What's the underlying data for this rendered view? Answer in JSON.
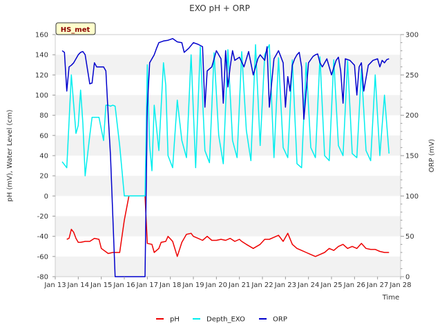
{
  "chart_data": {
    "type": "line",
    "title": "EXO pH + ORP",
    "badge": "HS_met",
    "xlabel": "Time",
    "ylabel": "pH (mV), Water Level (cm)",
    "y2label": "ORP (mV)",
    "x_ticks": [
      "Jan 13",
      "Jan 14",
      "Jan 15",
      "Jan 16",
      "Jan 17",
      "Jan 18",
      "Jan 19",
      "Jan 20",
      "Jan 21",
      "Jan 22",
      "Jan 23",
      "Jan 24",
      "Jan 25",
      "Jan 26",
      "Jan 27",
      "Jan 28"
    ],
    "x_range": [
      13,
      28
    ],
    "ylim": [
      -80,
      160
    ],
    "y_ticks": [
      -80,
      -60,
      -40,
      -20,
      0,
      20,
      40,
      60,
      80,
      100,
      120,
      140,
      160
    ],
    "y2lim": [
      0,
      300
    ],
    "y2_ticks": [
      0,
      50,
      100,
      150,
      200,
      250,
      300
    ],
    "grid": "horizontal bands",
    "legend_position": "bottom",
    "colors": {
      "pH": "#ee0000",
      "Depth_EXO": "#00eeee",
      "ORP": "#0000cc",
      "band": "#f2f2f2",
      "badge_bg": "#ffffcc",
      "badge_border": "#333333"
    },
    "series": [
      {
        "name": "pH",
        "axis": "left",
        "color": "#ee0000",
        "x": [
          13.5,
          13.6,
          13.7,
          13.8,
          13.9,
          14.0,
          14.1,
          14.3,
          14.5,
          14.7,
          14.9,
          15.0,
          15.3,
          15.5,
          15.8,
          16.0,
          16.2,
          16.5,
          16.7,
          16.9,
          17.0,
          17.2,
          17.3,
          17.5,
          17.6,
          17.8,
          17.9,
          18.1,
          18.3,
          18.5,
          18.7,
          18.9,
          19.0,
          19.2,
          19.4,
          19.6,
          19.8,
          20.0,
          20.2,
          20.4,
          20.6,
          20.8,
          21.0,
          21.1,
          21.3,
          21.6,
          21.9,
          22.1,
          22.3,
          22.5,
          22.7,
          22.9,
          23.1,
          23.3,
          23.5,
          23.7,
          23.9,
          24.1,
          24.3,
          24.5,
          24.7,
          24.9,
          25.1,
          25.3,
          25.5,
          25.7,
          25.9,
          26.1,
          26.3,
          26.5,
          26.7,
          26.9,
          27.0,
          27.1,
          27.3,
          27.5
        ],
        "values": [
          -43,
          -42,
          -33,
          -36,
          -42,
          -46,
          -46,
          -45,
          -45,
          -42,
          -43,
          -52,
          -57,
          -56,
          -56,
          -24,
          0,
          0,
          0,
          0,
          -47,
          -48,
          -56,
          -52,
          -46,
          -45,
          -40,
          -45,
          -60,
          -46,
          -38,
          -37,
          -40,
          -42,
          -44,
          -40,
          -44,
          -44,
          -43,
          -44,
          -42,
          -45,
          -43,
          -45,
          -48,
          -52,
          -48,
          -43,
          -43,
          -41,
          -39,
          -45,
          -37,
          -48,
          -52,
          -54,
          -56,
          -58,
          -60,
          -58,
          -56,
          -52,
          -54,
          -50,
          -48,
          -52,
          -50,
          -52,
          -47,
          -52,
          -53,
          -53,
          -54,
          -55,
          -56,
          -56
        ]
      },
      {
        "name": "Depth_EXO",
        "axis": "left",
        "color": "#00eeee",
        "x": [
          13.3,
          13.5,
          13.7,
          13.9,
          14.0,
          14.1,
          14.2,
          14.3,
          14.5,
          14.6,
          14.7,
          14.8,
          14.9,
          15.1,
          15.2,
          15.3,
          15.4,
          15.5,
          15.6,
          15.8,
          16.0,
          16.1,
          16.3,
          16.5,
          16.7,
          16.9,
          17.0,
          17.1,
          17.2,
          17.3,
          17.5,
          17.7,
          17.8,
          17.9,
          18.1,
          18.3,
          18.5,
          18.7,
          18.9,
          19.1,
          19.3,
          19.5,
          19.7,
          19.9,
          20.1,
          20.3,
          20.5,
          20.7,
          20.9,
          21.1,
          21.3,
          21.5,
          21.7,
          21.9,
          22.1,
          22.3,
          22.5,
          22.7,
          22.9,
          23.1,
          23.3,
          23.5,
          23.7,
          23.9,
          24.1,
          24.3,
          24.5,
          24.7,
          24.9,
          25.1,
          25.3,
          25.5,
          25.7,
          25.9,
          26.1,
          26.3,
          26.5,
          26.7,
          26.9,
          27.1,
          27.3,
          27.5
        ],
        "values": [
          34,
          28,
          120,
          62,
          70,
          105,
          72,
          20,
          60,
          78,
          78,
          78,
          78,
          55,
          90,
          90,
          89,
          90,
          89,
          50,
          0,
          0,
          0,
          0,
          0,
          0,
          130,
          50,
          25,
          90,
          45,
          132,
          110,
          40,
          28,
          95,
          55,
          38,
          140,
          28,
          148,
          45,
          33,
          142,
          60,
          32,
          145,
          55,
          38,
          143,
          65,
          35,
          150,
          50,
          140,
          150,
          38,
          137,
          48,
          38,
          135,
          32,
          28,
          132,
          48,
          38,
          138,
          40,
          35,
          135,
          50,
          40,
          134,
          42,
          38,
          126,
          45,
          35,
          120,
          40,
          100,
          42
        ]
      },
      {
        "name": "ORP",
        "axis": "right",
        "color": "#0000cc",
        "x": [
          13.3,
          13.4,
          13.5,
          13.6,
          13.7,
          13.8,
          13.9,
          14.0,
          14.1,
          14.2,
          14.3,
          14.5,
          14.6,
          14.7,
          14.8,
          14.9,
          15.0,
          15.1,
          15.2,
          15.3,
          15.4,
          15.6,
          15.8,
          16.0,
          16.1,
          16.3,
          16.5,
          16.7,
          16.9,
          17.0,
          17.1,
          17.2,
          17.3,
          17.4,
          17.5,
          17.7,
          17.9,
          18.1,
          18.3,
          18.5,
          18.6,
          18.8,
          19.0,
          19.2,
          19.4,
          19.5,
          19.6,
          19.8,
          20.0,
          20.2,
          20.3,
          20.4,
          20.5,
          20.6,
          20.7,
          20.8,
          20.9,
          21.0,
          21.2,
          21.4,
          21.6,
          21.8,
          21.9,
          22.1,
          22.2,
          22.3,
          22.5,
          22.6,
          22.7,
          22.9,
          23.0,
          23.1,
          23.2,
          23.3,
          23.4,
          23.5,
          23.6,
          23.7,
          23.8,
          24.0,
          24.2,
          24.3,
          24.4,
          24.5,
          24.6,
          24.8,
          25.0,
          25.2,
          25.3,
          25.4,
          25.5,
          25.6,
          25.8,
          26.0,
          26.1,
          26.2,
          26.3,
          26.4,
          26.6,
          26.8,
          27.0,
          27.1,
          27.2,
          27.3,
          27.4,
          27.5
        ],
        "values": [
          280,
          278,
          230,
          260,
          262,
          265,
          270,
          275,
          278,
          279,
          275,
          239,
          240,
          265,
          260,
          260,
          260,
          260,
          255,
          200,
          150,
          0,
          0,
          0,
          0,
          0,
          0,
          0,
          0,
          210,
          265,
          270,
          275,
          283,
          290,
          292,
          293,
          295,
          291,
          290,
          278,
          283,
          290,
          288,
          285,
          210,
          255,
          260,
          280,
          270,
          215,
          280,
          235,
          260,
          280,
          268,
          270,
          272,
          260,
          279,
          250,
          270,
          275,
          268,
          285,
          210,
          270,
          275,
          280,
          265,
          210,
          248,
          230,
          262,
          270,
          275,
          278,
          260,
          195,
          265,
          273,
          275,
          276,
          265,
          260,
          270,
          250,
          268,
          272,
          255,
          215,
          270,
          268,
          262,
          225,
          260,
          265,
          230,
          262,
          268,
          270,
          260,
          268,
          265,
          269,
          270
        ]
      }
    ]
  }
}
